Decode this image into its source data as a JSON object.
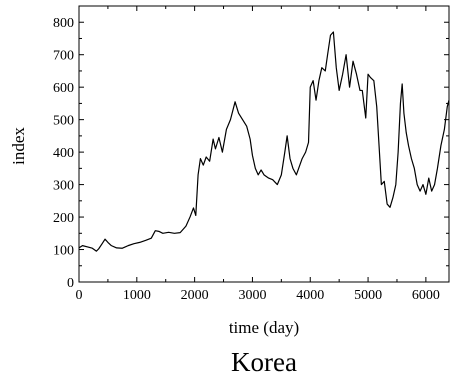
{
  "chart_data": {
    "type": "line",
    "title": "Korea",
    "xlabel": "time (day)",
    "ylabel": "index",
    "xlim": [
      0,
      6400
    ],
    "ylim": [
      0,
      850
    ],
    "x_ticks": [
      0,
      1000,
      2000,
      3000,
      4000,
      5000,
      6000
    ],
    "y_ticks": [
      0,
      100,
      200,
      300,
      400,
      500,
      600,
      700,
      800
    ],
    "grid": false,
    "series": [
      {
        "color": "#000000",
        "points": [
          [
            0,
            105
          ],
          [
            60,
            112
          ],
          [
            150,
            108
          ],
          [
            230,
            104
          ],
          [
            300,
            95
          ],
          [
            340,
            102
          ],
          [
            400,
            118
          ],
          [
            450,
            132
          ],
          [
            500,
            122
          ],
          [
            560,
            112
          ],
          [
            650,
            105
          ],
          [
            750,
            104
          ],
          [
            850,
            112
          ],
          [
            950,
            118
          ],
          [
            1050,
            122
          ],
          [
            1150,
            128
          ],
          [
            1250,
            135
          ],
          [
            1320,
            158
          ],
          [
            1380,
            156
          ],
          [
            1450,
            150
          ],
          [
            1550,
            153
          ],
          [
            1650,
            150
          ],
          [
            1750,
            152
          ],
          [
            1850,
            172
          ],
          [
            1920,
            200
          ],
          [
            1980,
            228
          ],
          [
            2020,
            205
          ],
          [
            2060,
            330
          ],
          [
            2100,
            380
          ],
          [
            2150,
            360
          ],
          [
            2200,
            385
          ],
          [
            2260,
            372
          ],
          [
            2320,
            440
          ],
          [
            2360,
            410
          ],
          [
            2420,
            445
          ],
          [
            2480,
            400
          ],
          [
            2550,
            470
          ],
          [
            2620,
            500
          ],
          [
            2700,
            555
          ],
          [
            2760,
            520
          ],
          [
            2830,
            500
          ],
          [
            2900,
            480
          ],
          [
            2960,
            440
          ],
          [
            3000,
            390
          ],
          [
            3050,
            350
          ],
          [
            3100,
            330
          ],
          [
            3150,
            345
          ],
          [
            3200,
            330
          ],
          [
            3280,
            320
          ],
          [
            3350,
            315
          ],
          [
            3430,
            300
          ],
          [
            3500,
            330
          ],
          [
            3560,
            400
          ],
          [
            3600,
            450
          ],
          [
            3650,
            380
          ],
          [
            3700,
            350
          ],
          [
            3760,
            330
          ],
          [
            3800,
            350
          ],
          [
            3860,
            380
          ],
          [
            3920,
            400
          ],
          [
            3970,
            430
          ],
          [
            4000,
            600
          ],
          [
            4050,
            620
          ],
          [
            4100,
            560
          ],
          [
            4150,
            620
          ],
          [
            4200,
            660
          ],
          [
            4260,
            650
          ],
          [
            4300,
            700
          ],
          [
            4350,
            760
          ],
          [
            4400,
            770
          ],
          [
            4450,
            660
          ],
          [
            4500,
            590
          ],
          [
            4560,
            640
          ],
          [
            4620,
            700
          ],
          [
            4680,
            600
          ],
          [
            4740,
            680
          ],
          [
            4800,
            640
          ],
          [
            4860,
            590
          ],
          [
            4900,
            590
          ],
          [
            4960,
            505
          ],
          [
            5000,
            640
          ],
          [
            5040,
            630
          ],
          [
            5100,
            620
          ],
          [
            5150,
            540
          ],
          [
            5190,
            420
          ],
          [
            5230,
            300
          ],
          [
            5280,
            310
          ],
          [
            5330,
            240
          ],
          [
            5380,
            230
          ],
          [
            5430,
            260
          ],
          [
            5480,
            300
          ],
          [
            5520,
            400
          ],
          [
            5560,
            550
          ],
          [
            5590,
            610
          ],
          [
            5620,
            520
          ],
          [
            5660,
            460
          ],
          [
            5700,
            420
          ],
          [
            5750,
            380
          ],
          [
            5800,
            350
          ],
          [
            5850,
            300
          ],
          [
            5900,
            280
          ],
          [
            5950,
            300
          ],
          [
            6000,
            270
          ],
          [
            6050,
            320
          ],
          [
            6100,
            280
          ],
          [
            6150,
            300
          ],
          [
            6200,
            350
          ],
          [
            6260,
            420
          ],
          [
            6320,
            470
          ],
          [
            6370,
            540
          ],
          [
            6400,
            560
          ]
        ]
      }
    ]
  }
}
